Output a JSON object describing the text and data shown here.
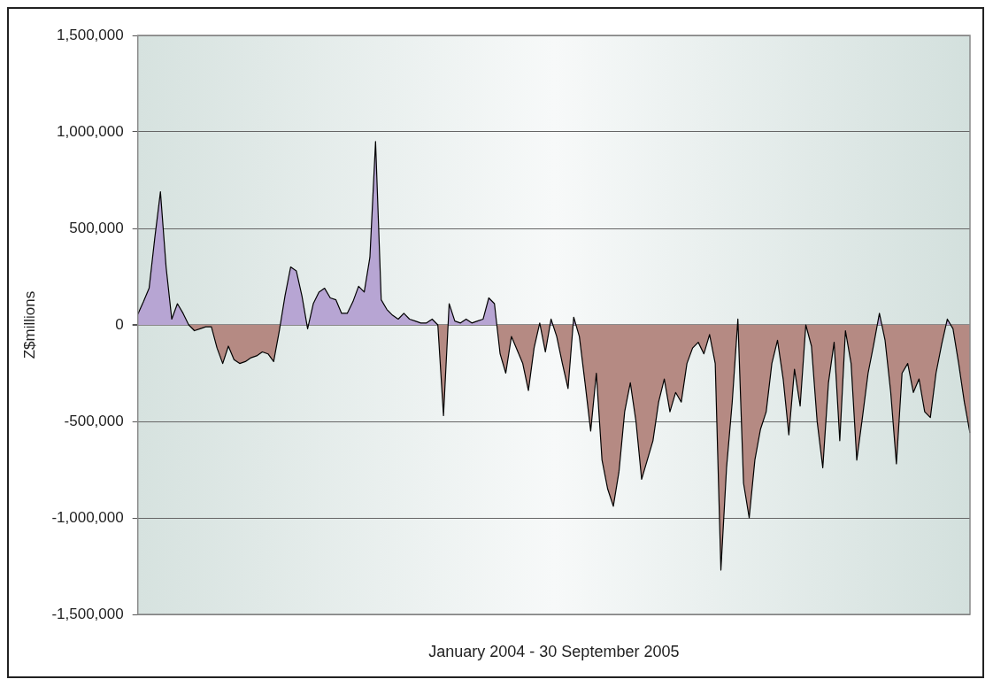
{
  "chart_data": {
    "type": "area",
    "xlabel": "January 2004 - 30 September 2005",
    "ylabel": "Z$millions",
    "categories": [
      null,
      null,
      null,
      null,
      null,
      null,
      null,
      null,
      null,
      null,
      null,
      null,
      null,
      null,
      null,
      null,
      null,
      null,
      null,
      null,
      null,
      null,
      null,
      null,
      null,
      null,
      null,
      null,
      null,
      null,
      null,
      null,
      null,
      null,
      null,
      null,
      null,
      null,
      null,
      null,
      null,
      null,
      null,
      null,
      null,
      null,
      null,
      null,
      null,
      null,
      null,
      null,
      null,
      null,
      null,
      null,
      null,
      null,
      null,
      null,
      null,
      null,
      null,
      null,
      null,
      null,
      null,
      null,
      null,
      null,
      null,
      null,
      null,
      null,
      null,
      null,
      null,
      null,
      null,
      null,
      null,
      null,
      null,
      null,
      null,
      null,
      null,
      null,
      null,
      null,
      null,
      null,
      null,
      null,
      null,
      null,
      null,
      null,
      null,
      null,
      null,
      null,
      null,
      null,
      null,
      null,
      null,
      null,
      null,
      null,
      null,
      null,
      null,
      null,
      null,
      null,
      null,
      null,
      null,
      null,
      null,
      null,
      null,
      null,
      null,
      null,
      null,
      null,
      null,
      null,
      null,
      null,
      null,
      null,
      null,
      null,
      null,
      null,
      null,
      null,
      null,
      null,
      null,
      null,
      null,
      null,
      null,
      null
    ],
    "colors": [
      "#b7a5d3",
      "#b58a83"
    ],
    "series": [
      {
        "color": "#000000",
        "values": [
          55000,
          120000,
          190000,
          450000,
          690000,
          300000,
          30000,
          110000,
          60000,
          0,
          -30000,
          -20000,
          -10000,
          -10000,
          -120000,
          -200000,
          -110000,
          -180000,
          -200000,
          -190000,
          -170000,
          -160000,
          -140000,
          -150000,
          -190000,
          -30000,
          150000,
          300000,
          280000,
          150000,
          -20000,
          110000,
          170000,
          190000,
          140000,
          130000,
          60000,
          60000,
          120000,
          200000,
          170000,
          350000,
          950000,
          130000,
          80000,
          50000,
          30000,
          60000,
          30000,
          20000,
          10000,
          10000,
          30000,
          0,
          -470000,
          110000,
          20000,
          10000,
          30000,
          10000,
          20000,
          30000,
          140000,
          110000,
          -150000,
          -250000,
          -60000,
          -130000,
          -200000,
          -340000,
          -120000,
          10000,
          -140000,
          30000,
          -60000,
          -200000,
          -330000,
          40000,
          -60000,
          -300000,
          -550000,
          -250000,
          -700000,
          -850000,
          -940000,
          -760000,
          -450000,
          -300000,
          -500000,
          -800000,
          -700000,
          -600000,
          -400000,
          -280000,
          -450000,
          -350000,
          -400000,
          -200000,
          -120000,
          -90000,
          -150000,
          -50000,
          -200000,
          -1270000,
          -740000,
          -400000,
          30000,
          -820000,
          -1000000,
          -700000,
          -540000,
          -450000,
          -200000,
          -80000,
          -280000,
          -570000,
          -230000,
          -420000,
          0,
          -110000,
          -500000,
          -740000,
          -300000,
          -90000,
          -600000,
          -30000,
          -200000,
          -700000,
          -480000,
          -250000,
          -100000,
          60000,
          -80000,
          -350000,
          -720000,
          -250000,
          -200000,
          -350000,
          -280000,
          -450000,
          -480000,
          -250000,
          -100000,
          30000,
          -20000,
          -200000,
          -400000,
          -560000
        ]
      }
    ],
    "ylim": [
      -1500000,
      1500000
    ],
    "yticks": [
      {
        "value": -1500000,
        "label": "-1,500,000"
      },
      {
        "value": -1000000,
        "label": "-1,000,000"
      },
      {
        "value": -500000,
        "label": "-500,000"
      },
      {
        "value": 0,
        "label": "0"
      },
      {
        "value": 500000,
        "label": "500,000"
      },
      {
        "value": 1000000,
        "label": "1,000,000"
      },
      {
        "value": 1500000,
        "label": "1,500,000"
      }
    ],
    "grid": "y",
    "legend": false,
    "marker": "none",
    "line_style": "solid"
  }
}
